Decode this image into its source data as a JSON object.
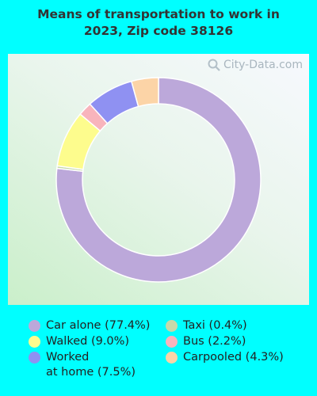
{
  "chart_data": {
    "type": "pie",
    "title": "Means of transportation to work in 2023, Zip code 38126",
    "donut": true,
    "legend_position": "bottom",
    "slices": [
      {
        "label": "Car alone",
        "value": 77.4,
        "display": "Car alone (77.4%)",
        "color": "#bca8da"
      },
      {
        "label": "Taxi",
        "value": 0.4,
        "display": "Taxi (0.4%)",
        "color": "#c6d9a9"
      },
      {
        "label": "Walked",
        "value": 9.0,
        "display": "Walked (9.0%)",
        "color": "#fdfc8d"
      },
      {
        "label": "Bus",
        "value": 2.2,
        "display": "Bus (2.2%)",
        "color": "#f8b4bc"
      },
      {
        "label": "Worked at home",
        "value": 7.5,
        "display": "Worked\nat home (7.5%)",
        "color": "#8f91f2"
      },
      {
        "label": "Carpooled",
        "value": 4.3,
        "display": "Carpooled (4.3%)",
        "color": "#fcd4a7"
      }
    ]
  },
  "watermark": "City-Data.com"
}
